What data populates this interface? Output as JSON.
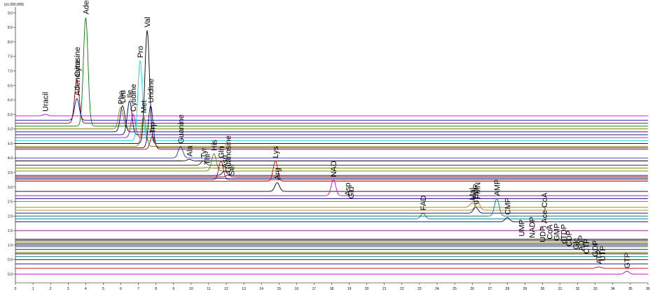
{
  "chart_data": {
    "type": "line",
    "y_multiplier": "(x1,000,000)",
    "xlim": [
      0,
      36
    ],
    "xticks": [
      0,
      1,
      2,
      3,
      4,
      5,
      6,
      7,
      8,
      9,
      10,
      11,
      12,
      13,
      14,
      15,
      16,
      17,
      18,
      19,
      20,
      21,
      22,
      23,
      24,
      25,
      26,
      27,
      28,
      29,
      30,
      31,
      32,
      33,
      34,
      35,
      36
    ],
    "ylim": [
      -0.3,
      9.2
    ],
    "yticks": [
      {
        "value": 0,
        "label": "0.0"
      },
      {
        "value": 0.5,
        "label": "0.5"
      },
      {
        "value": 1,
        "label": "1.0"
      },
      {
        "value": 1.5,
        "label": "1.5"
      },
      {
        "value": 2,
        "label": "2.0"
      },
      {
        "value": 2.5,
        "label": "2.5"
      },
      {
        "value": 3,
        "label": "3.0"
      },
      {
        "value": 3.5,
        "label": "3.5"
      },
      {
        "value": 4,
        "label": "4.0"
      },
      {
        "value": 4.5,
        "label": "4.5"
      },
      {
        "value": 5,
        "label": "5.0"
      },
      {
        "value": 5.5,
        "label": "5.5"
      },
      {
        "value": 6,
        "label": "6.0"
      },
      {
        "value": 6.5,
        "label": "6.5"
      },
      {
        "value": 7,
        "label": "7.0"
      },
      {
        "value": 7.5,
        "label": "7.5"
      },
      {
        "value": 8,
        "label": "8.0"
      },
      {
        "value": 8.5,
        "label": "8.5"
      },
      {
        "value": 9,
        "label": "9.0"
      }
    ],
    "series": [
      {
        "name": "Uracil",
        "color": "#d000d0",
        "x": 1.7,
        "baseline": 5.45,
        "peak": 5.5
      },
      {
        "name": "Adenosine",
        "color": "#0000c0",
        "x": 3.5,
        "baseline": 5.3,
        "peak": 6.05
      },
      {
        "name": "Cytosine",
        "color": "#800000",
        "x": 3.5,
        "baseline": 5.2,
        "peak": 6.7
      },
      {
        "name": "Adenine",
        "color": "#008000",
        "x": 4.0,
        "baseline": 5.1,
        "peak": 8.85
      },
      {
        "name": "Phe",
        "color": "#808000",
        "x": 6.0,
        "baseline": 5.0,
        "peak": 5.75
      },
      {
        "name": "Leu",
        "color": "#000080",
        "x": 6.1,
        "baseline": 4.9,
        "peak": 5.8
      },
      {
        "name": "Ile",
        "color": "#000060",
        "x": 6.5,
        "baseline": 4.8,
        "peak": 5.97
      },
      {
        "name": "Cytidine",
        "color": "#d000d0",
        "x": 6.7,
        "baseline": 4.7,
        "peak": 5.5
      },
      {
        "name": "Pro",
        "color": "#00e0e0",
        "x": 7.1,
        "baseline": 4.6,
        "peak": 7.35
      },
      {
        "name": "Val",
        "color": "#000000",
        "x": 7.5,
        "baseline": 4.5,
        "peak": 8.4
      },
      {
        "name": "Met",
        "color": "#808000",
        "x": 7.3,
        "baseline": 4.4,
        "peak": 5.45
      },
      {
        "name": "Uridine",
        "color": "#000080",
        "x": 7.7,
        "baseline": 4.35,
        "peak": 5.8
      },
      {
        "name": "Trp",
        "color": "#d00000",
        "x": 7.8,
        "baseline": 4.3,
        "peak": 4.75
      },
      {
        "name": "Guanine",
        "color": "#3030c0",
        "x": 9.4,
        "baseline": 4.0,
        "peak": 4.4
      },
      {
        "name": "Ala",
        "color": "#000000",
        "x": 9.9,
        "baseline": 3.9,
        "peak": 3.95
      },
      {
        "name": "Tyr",
        "color": "#202020",
        "x": 10.7,
        "baseline": 3.75,
        "peak": 3.9
      },
      {
        "name": "Thr",
        "color": "#808000",
        "x": 10.9,
        "baseline": 3.65,
        "peak": 3.67
      },
      {
        "name": "His",
        "color": "#608000",
        "x": 11.3,
        "baseline": 3.55,
        "peak": 4.15
      },
      {
        "name": "Gln",
        "color": "#d00000",
        "x": 11.7,
        "baseline": 3.25,
        "peak": 3.9
      },
      {
        "name": "Asn",
        "color": "#000080",
        "x": 11.9,
        "baseline": 3.4,
        "peak": 3.55
      },
      {
        "name": "Guanosine",
        "color": "#800000",
        "x": 12.1,
        "baseline": 3.35,
        "peak": 3.4
      },
      {
        "name": "Ser",
        "color": "#000060",
        "x": 12.3,
        "baseline": 3.3,
        "peak": 3.3
      },
      {
        "name": "Lys",
        "color": "#d00000",
        "x": 14.8,
        "baseline": 3.2,
        "peak": 3.9
      },
      {
        "name": "Arg",
        "color": "#000000",
        "x": 14.9,
        "baseline": 2.85,
        "peak": 3.15
      },
      {
        "name": "NAD",
        "color": "#d000d0",
        "x": 18.1,
        "baseline": 2.7,
        "peak": 3.25
      },
      {
        "name": "Asp",
        "color": "#000080",
        "x": 18.9,
        "baseline": 2.6,
        "peak": 2.6
      },
      {
        "name": "Glu",
        "color": "#808000",
        "x": 19.1,
        "baseline": 2.5,
        "peak": 2.5
      },
      {
        "name": "FAD",
        "color": "#008080",
        "x": 23.2,
        "baseline": 1.9,
        "peak": 2.1
      },
      {
        "name": "Mal",
        "color": "#808000",
        "x": 26.0,
        "baseline": 2.3,
        "peak": 2.45
      },
      {
        "name": "FMN",
        "color": "#b08000",
        "x": 26.3,
        "baseline": 2.2,
        "peak": 2.5
      },
      {
        "name": "dTMP",
        "color": "#000080",
        "x": 26.2,
        "baseline": 2.1,
        "peak": 2.3
      },
      {
        "name": "AMP",
        "color": "#008080",
        "x": 27.4,
        "baseline": 2.0,
        "peak": 2.6
      },
      {
        "name": "CMP",
        "color": "#000080",
        "x": 28.0,
        "baseline": 1.8,
        "peak": 1.95
      },
      {
        "name": "UMP",
        "color": "#000000",
        "x": 28.8,
        "baseline": 1.2,
        "peak": 1.2
      },
      {
        "name": "NADP",
        "color": "#202020",
        "x": 29.4,
        "baseline": 1.15,
        "peak": 1.15
      },
      {
        "name": "UDP",
        "color": "#000080",
        "x": 30.0,
        "baseline": 1.0,
        "peak": 1.0
      },
      {
        "name": "Ace-CoA",
        "color": "#800080",
        "x": 30.1,
        "baseline": 1.5,
        "peak": 1.65
      },
      {
        "name": "CoA",
        "color": "#808000",
        "x": 30.4,
        "baseline": 1.1,
        "peak": 1.1
      },
      {
        "name": "GMP",
        "color": "#404000",
        "x": 30.8,
        "baseline": 1.05,
        "peak": 1.05
      },
      {
        "name": "dTDP",
        "color": "#004040",
        "x": 31.2,
        "baseline": 0.95,
        "peak": 0.95
      },
      {
        "name": "CDP",
        "color": "#000060",
        "x": 31.5,
        "baseline": 0.85,
        "peak": 0.85
      },
      {
        "name": "Glc",
        "color": "#606000",
        "x": 31.9,
        "baseline": 0.75,
        "peak": 0.75
      },
      {
        "name": "ADP",
        "color": "#000000",
        "x": 32.2,
        "baseline": 0.7,
        "peak": 0.7
      },
      {
        "name": "CTP",
        "color": "#008080",
        "x": 32.5,
        "baseline": 0.6,
        "peak": 0.6
      },
      {
        "name": "GDP",
        "color": "#800000",
        "x": 33.0,
        "baseline": 0.5,
        "peak": 0.5
      },
      {
        "name": "UTP",
        "color": "#000080",
        "x": 33.4,
        "baseline": 0.35,
        "peak": 0.35
      },
      {
        "name": "ATP",
        "color": "#d00000",
        "x": 33.2,
        "baseline": 0.2,
        "peak": 0.25
      },
      {
        "name": "GTP",
        "color": "#d000d0",
        "x": 34.8,
        "baseline": 0.0,
        "peak": 0.1
      }
    ]
  }
}
